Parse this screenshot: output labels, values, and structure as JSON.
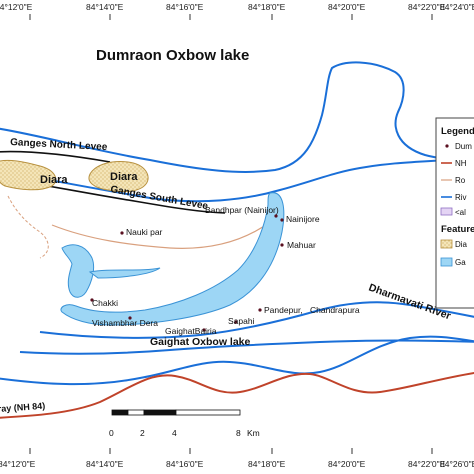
{
  "title": "Dumraon Oxbow lake",
  "longitude_ticks": [
    "84°12'0\"E",
    "84°14'0\"E",
    "84°16'0\"E",
    "84°18'0\"E",
    "84°20'0\"E",
    "84°22'0\"E",
    "84°24'0\"E",
    "84°26'0\"E"
  ],
  "features": {
    "levee_north": "Ganges North Levee",
    "levee_south": "Ganges South Levee",
    "diara_1": "Diara",
    "diara_2": "Diara",
    "river_name": "Dharmavati River",
    "oxbow_name": "Gaighat Oxbow lake",
    "highway": "ray (NH 84)"
  },
  "places": [
    {
      "name": "Bandhpar (Nainijor)"
    },
    {
      "name": "Nainijore"
    },
    {
      "name": "Mahuar"
    },
    {
      "name": "Nauki par"
    },
    {
      "name": "Chakki"
    },
    {
      "name": "Vishambhar Dera"
    },
    {
      "name": "Pandepur,"
    },
    {
      "name": "Chandrapura"
    },
    {
      "name": "Sapahi"
    },
    {
      "name": "GaighatBairia"
    }
  ],
  "legend": {
    "heading": "Legend",
    "items": [
      "Dum",
      "NH",
      "Ro",
      "Riv",
      "<al"
    ],
    "features_heading": "Features",
    "feature_items": [
      "Dia",
      "Ga"
    ]
  },
  "scale": {
    "labels": [
      "0",
      "2",
      "4",
      "8"
    ],
    "unit": "Km"
  },
  "colors": {
    "river": "#1a6fd8",
    "highway": "#c0432a",
    "road": "#d9a07e",
    "lake_fill": "#9dd6f5",
    "lake_stroke": "#3a93d6",
    "diara_fill": "#f4e5b8",
    "diara_stroke": "#b8913f",
    "levee": "#111111"
  }
}
